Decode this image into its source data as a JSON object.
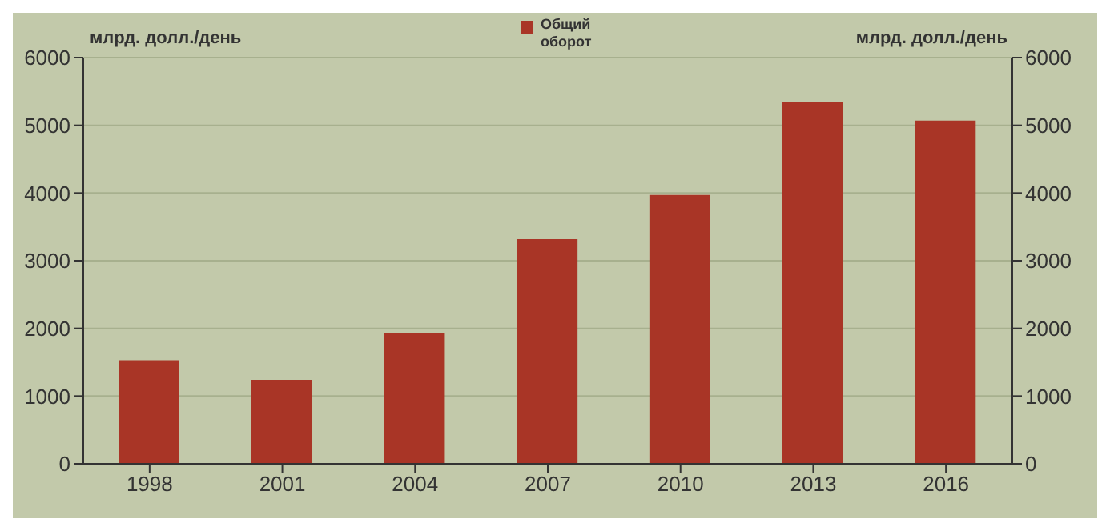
{
  "chart_data": {
    "type": "bar",
    "ylabel": "млрд. долл./день",
    "y2label": "млрд. долл./день",
    "categories": [
      "1998",
      "2001",
      "2004",
      "2007",
      "2010",
      "2013",
      "2016"
    ],
    "series": [
      {
        "name": "Общий оборот",
        "color": "#a93526",
        "values": [
          1530,
          1240,
          1930,
          3320,
          3970,
          5340,
          5070
        ]
      }
    ],
    "ylim": [
      0,
      6000
    ],
    "yticks": [
      0,
      1000,
      2000,
      3000,
      4000,
      5000,
      6000
    ],
    "y2lim": [
      0,
      6000
    ],
    "y2ticks": [
      0,
      1000,
      2000,
      3000,
      4000,
      5000,
      6000
    ],
    "grid": "y",
    "legend": "top"
  }
}
